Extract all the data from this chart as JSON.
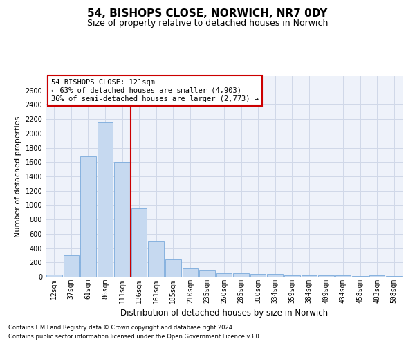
{
  "title1": "54, BISHOPS CLOSE, NORWICH, NR7 0DY",
  "title2": "Size of property relative to detached houses in Norwich",
  "xlabel": "Distribution of detached houses by size in Norwich",
  "ylabel": "Number of detached properties",
  "footnote1": "Contains HM Land Registry data © Crown copyright and database right 2024.",
  "footnote2": "Contains public sector information licensed under the Open Government Licence v3.0.",
  "bar_labels": [
    "12sqm",
    "37sqm",
    "61sqm",
    "86sqm",
    "111sqm",
    "136sqm",
    "161sqm",
    "185sqm",
    "210sqm",
    "235sqm",
    "260sqm",
    "285sqm",
    "310sqm",
    "334sqm",
    "359sqm",
    "384sqm",
    "409sqm",
    "434sqm",
    "458sqm",
    "483sqm",
    "508sqm"
  ],
  "bar_values": [
    25,
    300,
    1680,
    2150,
    1600,
    960,
    500,
    250,
    120,
    100,
    50,
    50,
    35,
    35,
    20,
    20,
    20,
    20,
    5,
    20,
    5
  ],
  "bar_color": "#c6d9f0",
  "bar_edge_color": "#7aaadc",
  "vline_x": 4.5,
  "vline_color": "#cc0000",
  "annotation_text": "54 BISHOPS CLOSE: 121sqm\n← 63% of detached houses are smaller (4,903)\n36% of semi-detached houses are larger (2,773) →",
  "ylim": [
    0,
    2800
  ],
  "yticks": [
    0,
    200,
    400,
    600,
    800,
    1000,
    1200,
    1400,
    1600,
    1800,
    2000,
    2200,
    2400,
    2600
  ],
  "grid_color": "#d0d8e8",
  "background_color": "#eef2fa",
  "title1_fontsize": 11,
  "title2_fontsize": 9,
  "ylabel_fontsize": 8,
  "xlabel_fontsize": 8.5,
  "tick_fontsize": 7,
  "annotation_fontsize": 7.5,
  "footnote_fontsize": 6
}
